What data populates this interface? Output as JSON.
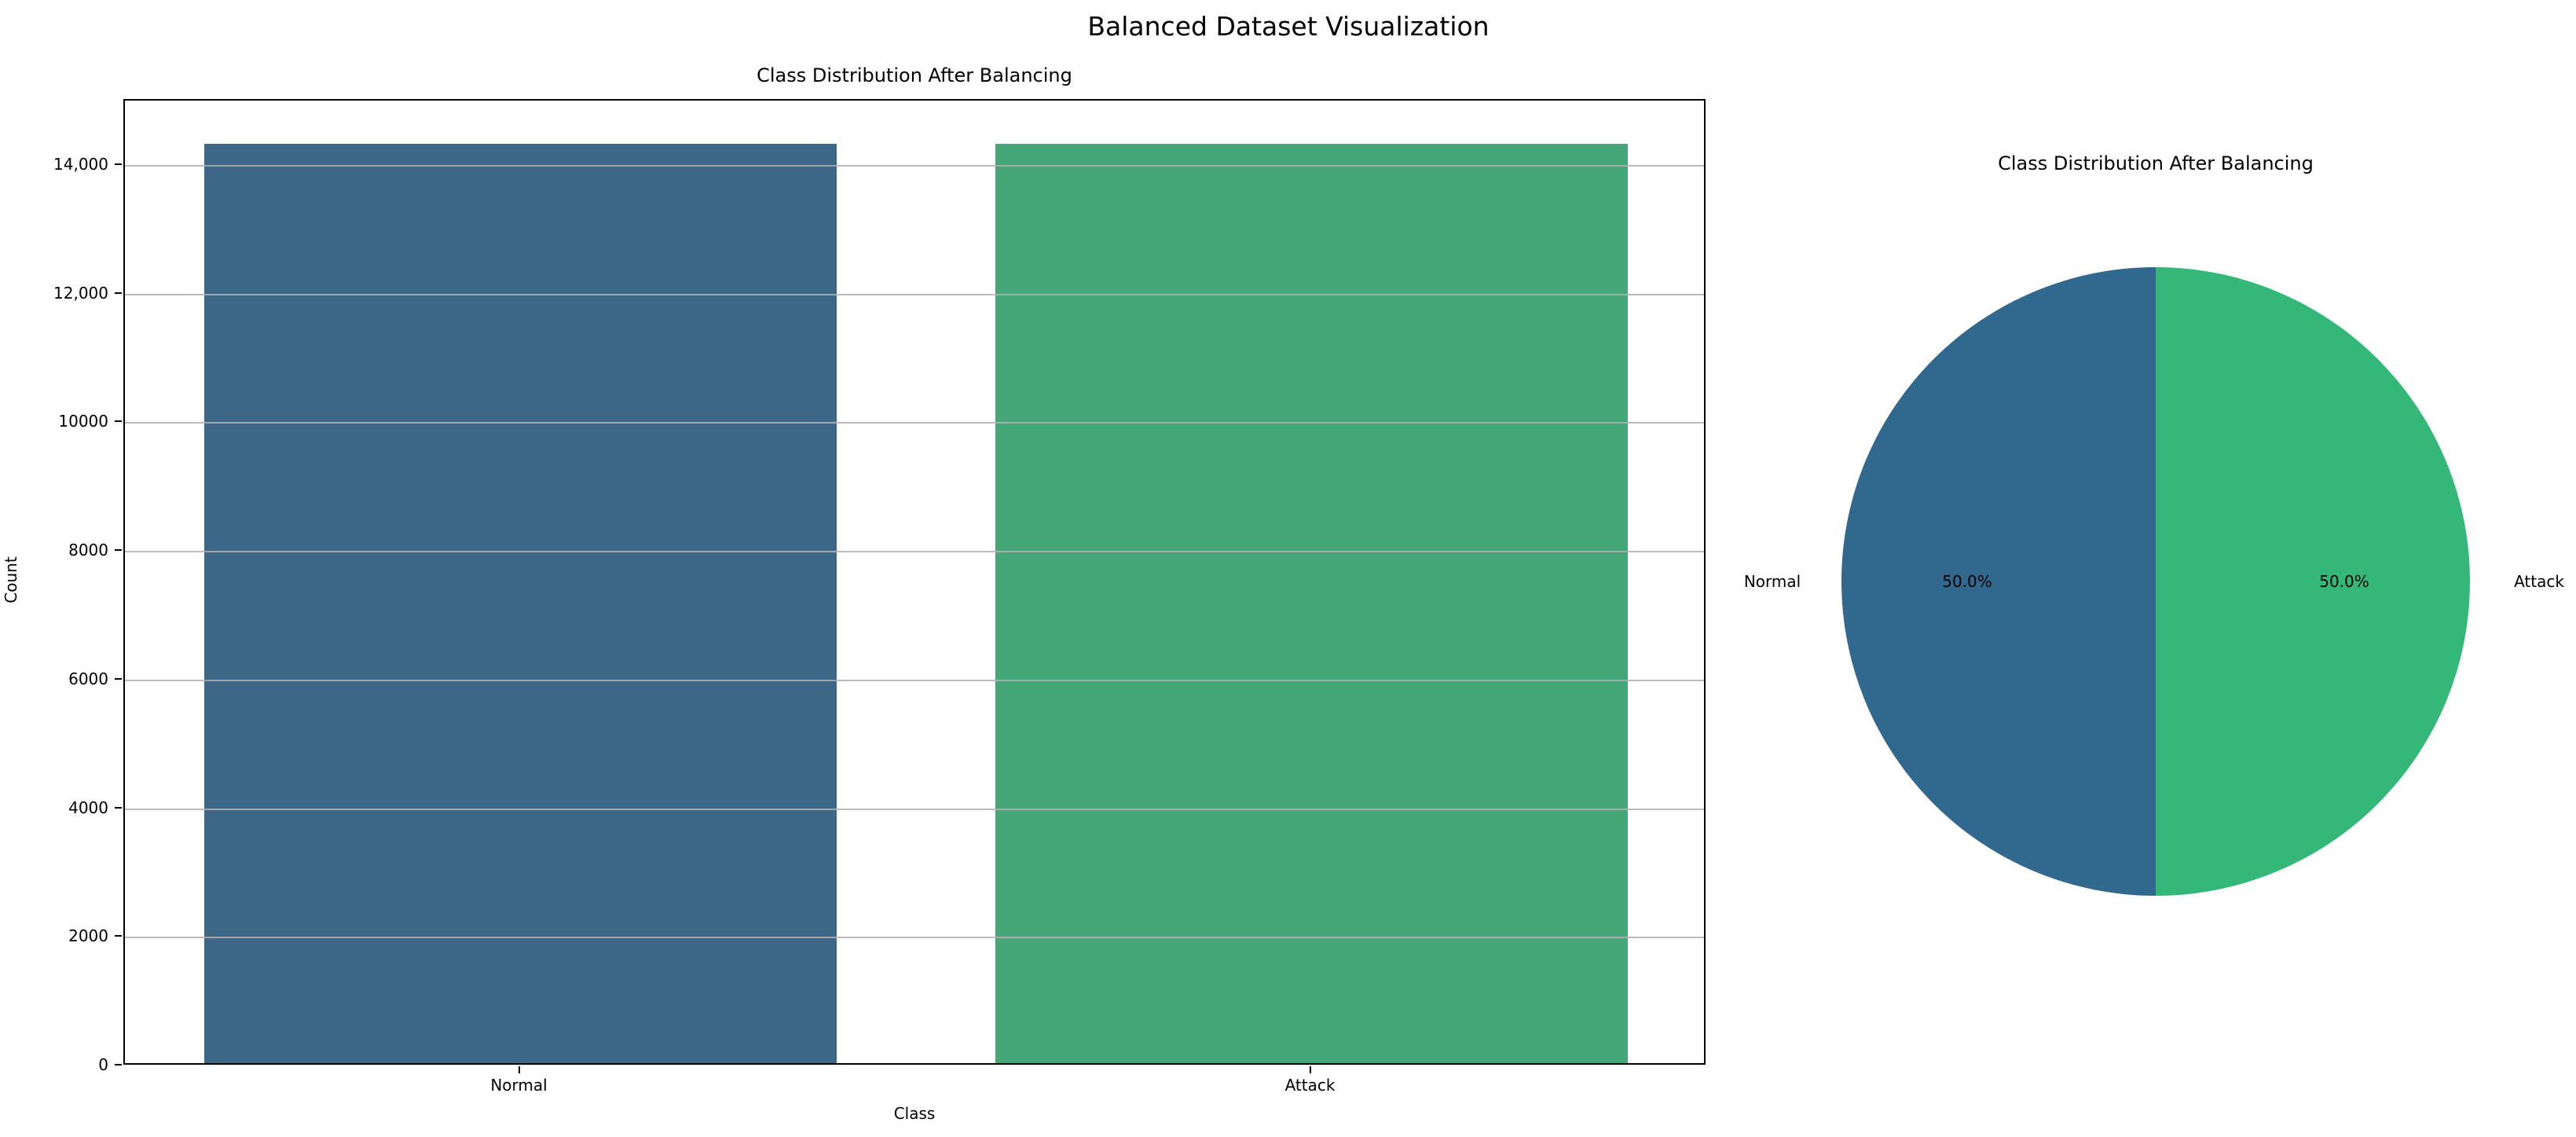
{
  "figure": {
    "title": "Balanced Dataset Visualization",
    "background_color": "#ffffff",
    "text_color": "#000000",
    "grid_color": "#b0b0b0"
  },
  "chart_data": [
    {
      "type": "bar",
      "title": "Class Distribution After Balancing",
      "xlabel": "Class",
      "ylabel": "Count",
      "categories": [
        "Normal",
        "Attack"
      ],
      "values": [
        14300,
        14300
      ],
      "bar_colors": [
        "#3c6786",
        "#45a778"
      ],
      "ylim": [
        0,
        15015
      ],
      "yticks": [
        {
          "value": 0,
          "label": "0"
        },
        {
          "value": 2000,
          "label": "2000"
        },
        {
          "value": 4000,
          "label": "4000"
        },
        {
          "value": 6000,
          "label": "6000"
        },
        {
          "value": 8000,
          "label": "8000"
        },
        {
          "value": 10000,
          "label": "10000"
        },
        {
          "value": 12000,
          "label": "12,000"
        },
        {
          "value": 14000,
          "label": "14,000"
        }
      ],
      "grid": true,
      "legend": "none"
    },
    {
      "type": "pie",
      "title": "Class Distribution After Balancing",
      "labels": [
        "Normal",
        "Attack"
      ],
      "values": [
        50.0,
        50.0
      ],
      "pct_labels": [
        "50.0%",
        "50.0%"
      ],
      "colors": [
        "#31688e",
        "#35b779"
      ],
      "start_angle": 90,
      "direction": "counterclockwise",
      "legend": "none"
    }
  ]
}
